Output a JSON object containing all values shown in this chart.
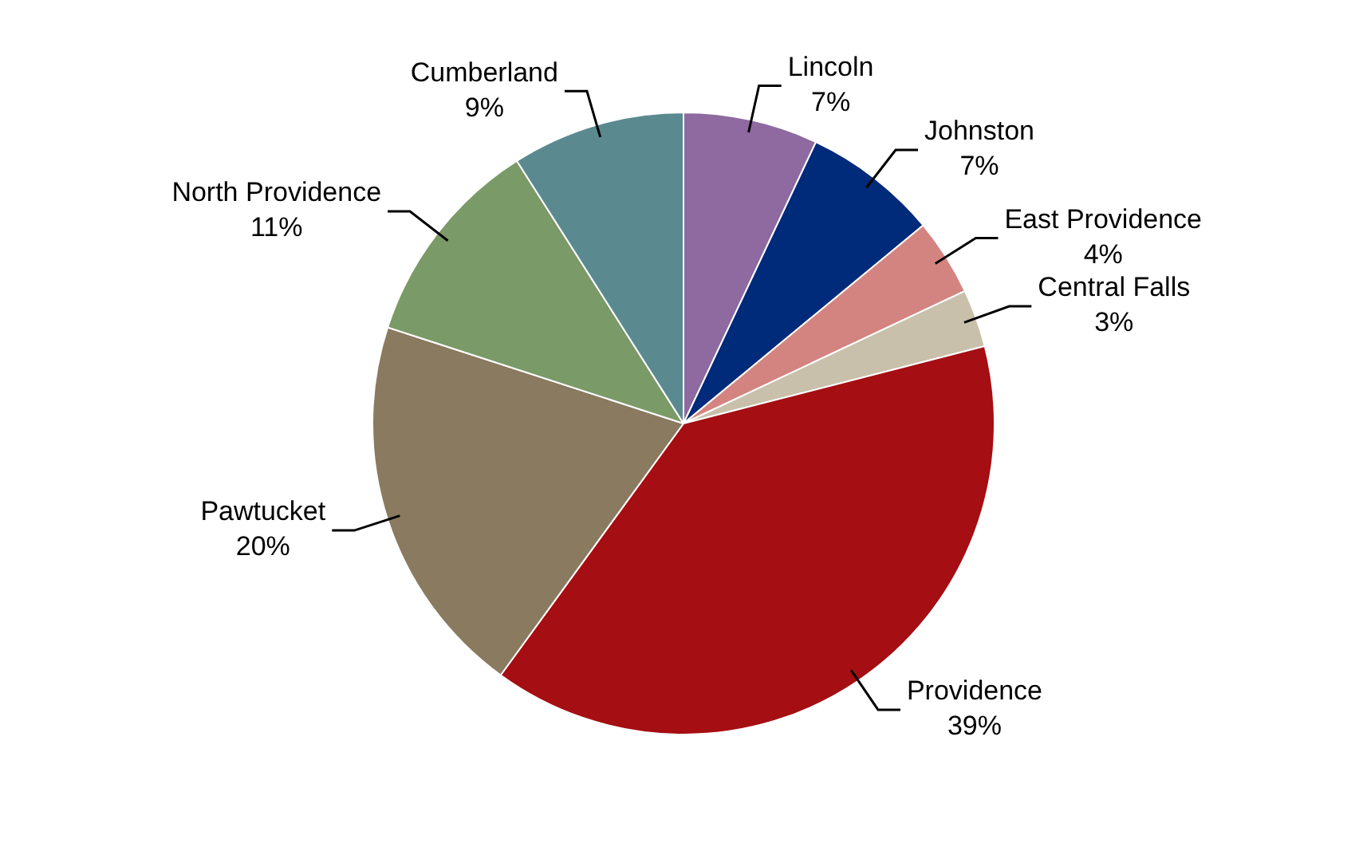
{
  "chart_data": {
    "type": "pie",
    "categories": [
      "Lincoln",
      "Johnston",
      "East Providence",
      "Central Falls",
      "Providence",
      "Pawtucket",
      "North Providence",
      "Cumberland"
    ],
    "values": [
      7,
      7,
      4,
      3,
      39,
      20,
      11,
      9
    ],
    "value_labels": [
      "7%",
      "7%",
      "4%",
      "3%",
      "39%",
      "20%",
      "11%",
      "9%"
    ],
    "colors": [
      "#8e6aa0",
      "#002a7a",
      "#d48480",
      "#c8c0aa",
      "#a50e12",
      "#8a7a60",
      "#7a9a68",
      "#5a8a90"
    ],
    "legend": false
  }
}
